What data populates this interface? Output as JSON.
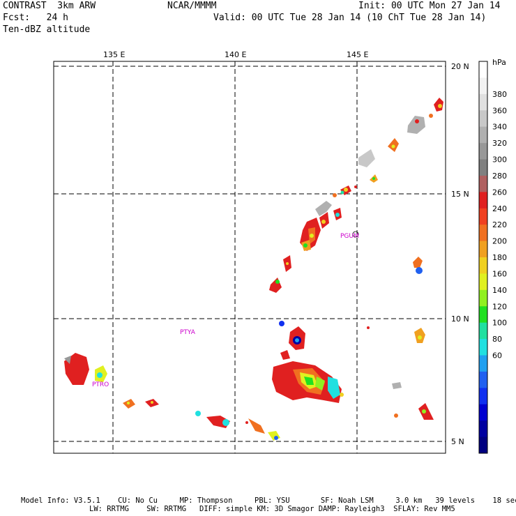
{
  "header": {
    "model": "CONTRAST  3km ARW",
    "org": "NCAR/MMMM",
    "init": "Init: 00 UTC Mon 27 Jan 14",
    "fcst": "Fcst:   24 h",
    "valid": "Valid: 00 UTC Tue 28 Jan 14 (10 ChT Tue 28 Jan 14)",
    "field": "Ten-dBZ altitude"
  },
  "map": {
    "lon_labels": [
      "135 E",
      "140 E",
      "145 E"
    ],
    "lat_labels": [
      "20 N",
      "15 N",
      "10 N",
      "5 N"
    ],
    "stations": [
      "PGUM",
      "PTYA",
      "PTRO"
    ]
  },
  "colorbar": {
    "unit": "hPa",
    "tick_labels": [
      "380",
      "360",
      "340",
      "320",
      "300",
      "280",
      "260",
      "240",
      "220",
      "200",
      "180",
      "160",
      "140",
      "120",
      "100",
      "80",
      "60"
    ],
    "colors": [
      "#ffffff",
      "#f2f2f2",
      "#e0e0e0",
      "#c8c8c8",
      "#b0b0b0",
      "#989898",
      "#808080",
      "#b06060",
      "#e02020",
      "#f04020",
      "#f07020",
      "#f0a020",
      "#f0d020",
      "#e0f020",
      "#90f020",
      "#20e020",
      "#20e0a0",
      "#20e0e0",
      "#20a0f0",
      "#2060f0",
      "#1030f0",
      "#0000d0",
      "#0000a0",
      "#000080"
    ]
  },
  "footer": {
    "line1": "Model Info: V3.5.1    CU: No Cu     MP: Thompson     PBL: YSU       SF: Noah LSM     3.0 km   39 levels    18 sec",
    "line2": "LW: RRTMG    SW: RRTMG   DIFF: simple KM: 3D Smagor DAMP: Rayleigh3  SFLAY: Rev MM5"
  }
}
